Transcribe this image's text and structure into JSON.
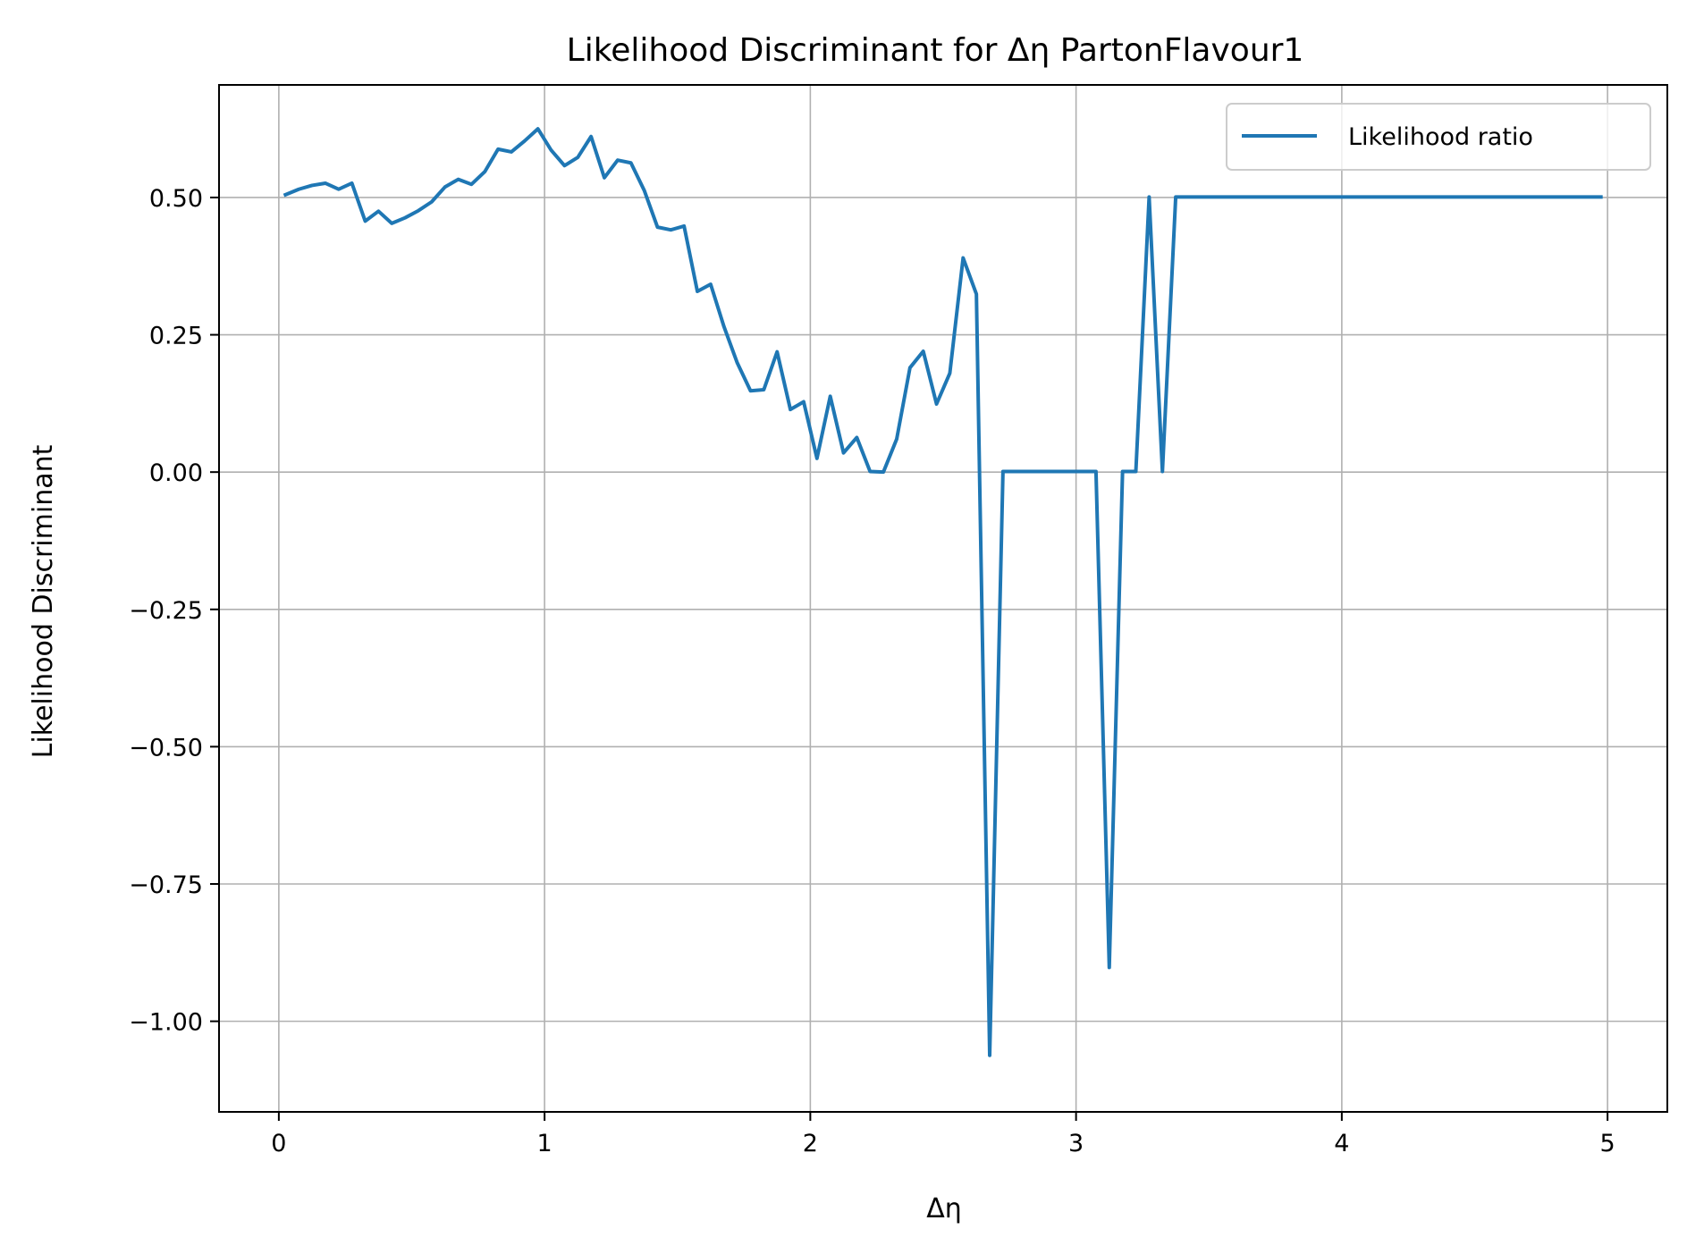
{
  "chart_data": {
    "type": "line",
    "title": "Likelihood Discriminant for Δη PartonFlavour1",
    "xlabel": "Δη",
    "ylabel": "Likelihood Discriminant",
    "xlim": [
      -0.225,
      5.225
    ],
    "ylim": [
      -1.165,
      0.705
    ],
    "xticks": [
      0,
      1,
      2,
      3,
      4,
      5
    ],
    "xtick_labels": [
      "0",
      "1",
      "2",
      "3",
      "4",
      "5"
    ],
    "yticks": [
      0.5,
      0.25,
      0.0,
      -0.25,
      -0.5,
      -0.75,
      -1.0
    ],
    "ytick_labels": [
      "0.50",
      "0.25",
      "0.00",
      "−0.25",
      "−0.50",
      "−0.75",
      "−1.00"
    ],
    "grid": true,
    "legend": {
      "position": "top-right"
    },
    "series": [
      {
        "name": "Likelihood ratio",
        "color": "#1f77b4",
        "x": [
          0.025,
          0.075,
          0.125,
          0.175,
          0.225,
          0.275,
          0.325,
          0.375,
          0.425,
          0.475,
          0.525,
          0.575,
          0.625,
          0.675,
          0.725,
          0.775,
          0.825,
          0.875,
          0.925,
          0.975,
          1.025,
          1.075,
          1.125,
          1.175,
          1.225,
          1.275,
          1.325,
          1.375,
          1.425,
          1.475,
          1.525,
          1.575,
          1.625,
          1.675,
          1.725,
          1.775,
          1.825,
          1.875,
          1.925,
          1.975,
          2.025,
          2.075,
          2.125,
          2.175,
          2.225,
          2.275,
          2.325,
          2.375,
          2.425,
          2.475,
          2.525,
          2.575,
          2.625,
          2.675,
          2.725,
          2.775,
          2.825,
          2.875,
          2.925,
          2.975,
          3.025,
          3.075,
          3.125,
          3.175,
          3.225,
          3.275,
          3.325,
          3.375,
          3.425,
          3.475,
          3.525,
          3.575,
          3.625,
          3.675,
          3.725,
          3.775,
          3.825,
          3.875,
          3.925,
          3.975,
          4.025,
          4.075,
          4.125,
          4.175,
          4.225,
          4.275,
          4.325,
          4.375,
          4.425,
          4.475,
          4.525,
          4.575,
          4.625,
          4.675,
          4.725,
          4.775,
          4.825,
          4.875,
          4.925,
          4.975
        ],
        "y": [
          0.505,
          0.515,
          0.522,
          0.526,
          0.515,
          0.526,
          0.457,
          0.475,
          0.453,
          0.463,
          0.476,
          0.492,
          0.519,
          0.533,
          0.524,
          0.547,
          0.588,
          0.583,
          0.603,
          0.625,
          0.586,
          0.558,
          0.573,
          0.611,
          0.536,
          0.568,
          0.563,
          0.513,
          0.446,
          0.441,
          0.448,
          0.329,
          0.342,
          0.265,
          0.199,
          0.148,
          0.15,
          0.219,
          0.114,
          0.128,
          0.025,
          0.138,
          0.035,
          0.063,
          0.001,
          0.0,
          0.06,
          0.19,
          0.22,
          0.124,
          0.18,
          0.39,
          0.324,
          -1.062,
          0.001,
          0.001,
          0.001,
          0.001,
          0.001,
          0.001,
          0.001,
          0.001,
          -0.902,
          0.001,
          0.001,
          0.501,
          0.001,
          0.501,
          0.501,
          0.501,
          0.501,
          0.501,
          0.501,
          0.501,
          0.501,
          0.501,
          0.501,
          0.501,
          0.501,
          0.501,
          0.501,
          0.501,
          0.501,
          0.501,
          0.501,
          0.501,
          0.501,
          0.501,
          0.501,
          0.501,
          0.501,
          0.501,
          0.501,
          0.501,
          0.501,
          0.501,
          0.501,
          0.501,
          0.501,
          0.501
        ]
      }
    ]
  }
}
